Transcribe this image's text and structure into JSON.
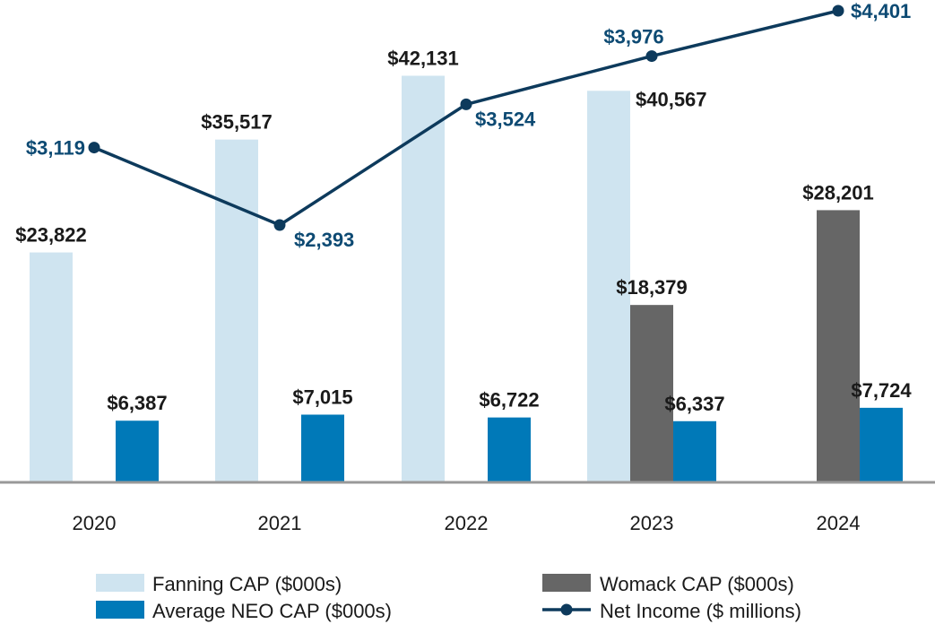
{
  "chart_data": {
    "type": "bar",
    "categories": [
      "2020",
      "2021",
      "2022",
      "2023",
      "2024"
    ],
    "series": [
      {
        "name": "Fanning CAP ($000s)",
        "key": "fanning",
        "color": "#cfe4f0",
        "values": [
          23822,
          35517,
          42131,
          40567,
          null
        ],
        "labels": [
          "$23,822",
          "$35,517",
          "$42,131",
          "$40,567",
          ""
        ]
      },
      {
        "name": "Womack CAP ($000s)",
        "key": "womack",
        "color": "#666666",
        "values": [
          null,
          null,
          null,
          18379,
          28201
        ],
        "labels": [
          "",
          "",
          "",
          "$18,379",
          "$28,201"
        ]
      },
      {
        "name": "Average NEO CAP ($000s)",
        "key": "avgneo",
        "color": "#0079b8",
        "values": [
          6387,
          7015,
          6722,
          6337,
          7724
        ],
        "labels": [
          "$6,387",
          "$7,015",
          "$6,722",
          "$6,337",
          "$7,724"
        ]
      }
    ],
    "line_series": {
      "name": "Net Income ($ millions)",
      "color": "#0d3a5c",
      "values": [
        3119,
        2393,
        3524,
        3976,
        4401
      ],
      "labels": [
        "$3,119",
        "$2,393",
        "$3,524",
        "$3,976",
        "$4,401"
      ]
    },
    "bar_ylim": [
      0,
      50000
    ],
    "line_ylim": [
      0,
      4600
    ],
    "legend": {
      "fanning": "Fanning CAP ($000s)",
      "womack": "Womack CAP ($000s)",
      "avgneo": "Average NEO CAP ($000s)",
      "netincome": "Net Income ($ millions)"
    },
    "title": "",
    "xlabel": "",
    "ylabel": "",
    "grid": false,
    "legend_position": "bottom"
  }
}
